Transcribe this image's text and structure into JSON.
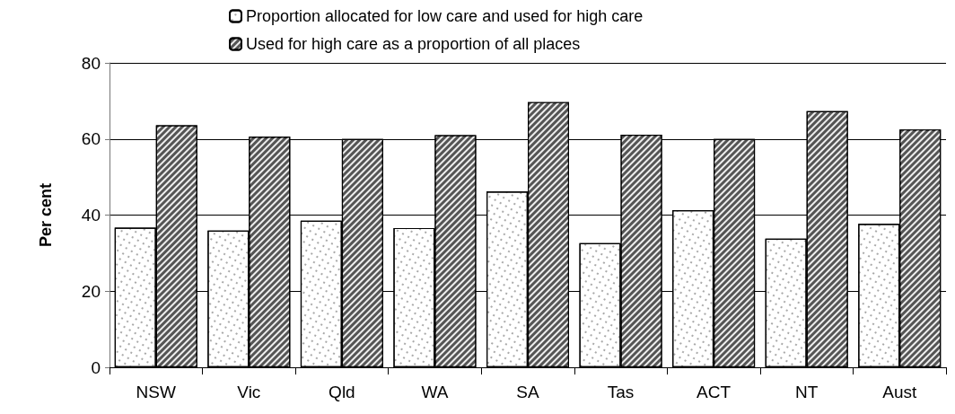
{
  "chart_data": {
    "type": "bar",
    "ylabel": "Per cent",
    "categories": [
      "NSW",
      "Vic",
      "Qld",
      "WA",
      "SA",
      "Tas",
      "ACT",
      "NT",
      "Aust"
    ],
    "series": [
      {
        "name": "Proportion allocated for low care and used for high care",
        "color": "#ffffff",
        "values": [
          36.7,
          35.9,
          38.5,
          36.6,
          46.2,
          32.6,
          41.3,
          33.8,
          37.7
        ]
      },
      {
        "name": "Used for high care as a proportion of all places",
        "color": "#555555",
        "values": [
          63.6,
          60.6,
          60.0,
          61.0,
          69.7,
          61.1,
          60.0,
          67.3,
          62.5
        ]
      }
    ],
    "ylim": [
      0,
      80
    ],
    "yticks": [
      0,
      20,
      40,
      60,
      80
    ],
    "grid": "y",
    "legend": "top"
  }
}
